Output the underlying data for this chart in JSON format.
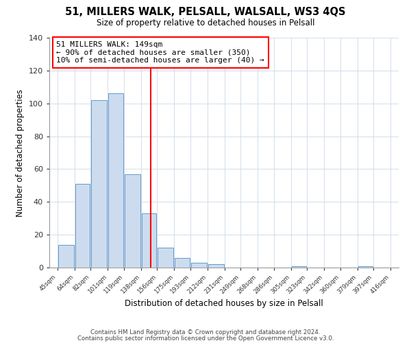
{
  "title": "51, MILLERS WALK, PELSALL, WALSALL, WS3 4QS",
  "subtitle": "Size of property relative to detached houses in Pelsall",
  "xlabel": "Distribution of detached houses by size in Pelsall",
  "ylabel": "Number of detached properties",
  "bar_color": "#ccdcee",
  "bar_edge_color": "#6699cc",
  "vline_x": 149,
  "vline_color": "red",
  "annotation_title": "51 MILLERS WALK: 149sqm",
  "annotation_line1": "← 90% of detached houses are smaller (350)",
  "annotation_line2": "10% of semi-detached houses are larger (40) →",
  "bins": [
    45,
    64,
    82,
    101,
    119,
    138,
    156,
    175,
    193,
    212,
    231,
    249,
    268,
    286,
    305,
    323,
    342,
    360,
    379,
    397,
    416
  ],
  "counts": [
    14,
    51,
    102,
    106,
    57,
    33,
    12,
    6,
    3,
    2,
    0,
    0,
    0,
    0,
    1,
    0,
    0,
    0,
    1,
    0
  ],
  "tick_labels": [
    "45sqm",
    "64sqm",
    "82sqm",
    "101sqm",
    "119sqm",
    "138sqm",
    "156sqm",
    "175sqm",
    "193sqm",
    "212sqm",
    "231sqm",
    "249sqm",
    "268sqm",
    "286sqm",
    "305sqm",
    "323sqm",
    "342sqm",
    "360sqm",
    "379sqm",
    "397sqm",
    "416sqm"
  ],
  "ylim": [
    0,
    140
  ],
  "yticks": [
    0,
    20,
    40,
    60,
    80,
    100,
    120,
    140
  ],
  "background_color": "#ffffff",
  "footer_line1": "Contains HM Land Registry data © Crown copyright and database right 2024.",
  "footer_line2": "Contains public sector information licensed under the Open Government Licence v3.0."
}
